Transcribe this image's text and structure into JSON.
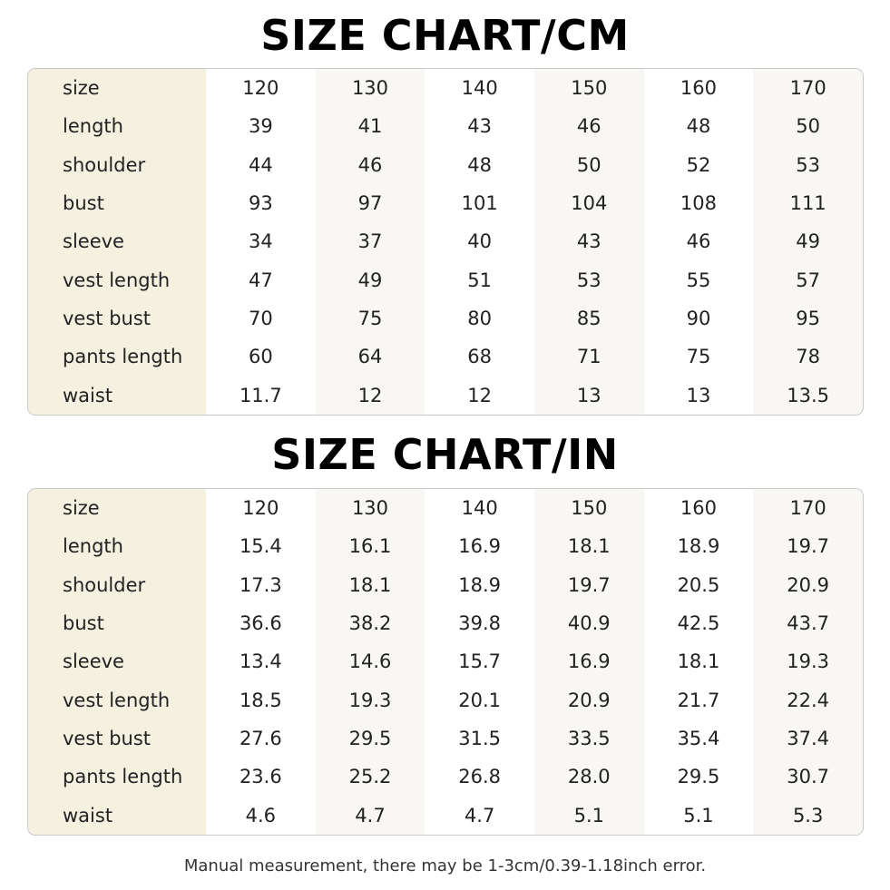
{
  "cm_chart": {
    "title": "SIZE CHART/CM",
    "rows": [
      {
        "label": "size",
        "values": [
          "120",
          "130",
          "140",
          "150",
          "160",
          "170"
        ]
      },
      {
        "label": "length",
        "values": [
          "39",
          "41",
          "43",
          "46",
          "48",
          "50"
        ]
      },
      {
        "label": "shoulder",
        "values": [
          "44",
          "46",
          "48",
          "50",
          "52",
          "53"
        ]
      },
      {
        "label": "bust",
        "values": [
          "93",
          "97",
          "101",
          "104",
          "108",
          "111"
        ]
      },
      {
        "label": "sleeve",
        "values": [
          "34",
          "37",
          "40",
          "43",
          "46",
          "49"
        ]
      },
      {
        "label": "vest length",
        "values": [
          "47",
          "49",
          "51",
          "53",
          "55",
          "57"
        ]
      },
      {
        "label": "vest bust",
        "values": [
          "70",
          "75",
          "80",
          "85",
          "90",
          "95"
        ]
      },
      {
        "label": "pants length",
        "values": [
          "60",
          "64",
          "68",
          "71",
          "75",
          "78"
        ]
      },
      {
        "label": "waist",
        "values": [
          "11.7",
          "12",
          "12",
          "13",
          "13",
          "13.5"
        ]
      }
    ]
  },
  "in_chart": {
    "title": "SIZE CHART/IN",
    "rows": [
      {
        "label": "size",
        "values": [
          "120",
          "130",
          "140",
          "150",
          "160",
          "170"
        ]
      },
      {
        "label": "length",
        "values": [
          "15.4",
          "16.1",
          "16.9",
          "18.1",
          "18.9",
          "19.7"
        ]
      },
      {
        "label": "shoulder",
        "values": [
          "17.3",
          "18.1",
          "18.9",
          "19.7",
          "20.5",
          "20.9"
        ]
      },
      {
        "label": "bust",
        "values": [
          "36.6",
          "38.2",
          "39.8",
          "40.9",
          "42.5",
          "43.7"
        ]
      },
      {
        "label": "sleeve",
        "values": [
          "13.4",
          "14.6",
          "15.7",
          "16.9",
          "18.1",
          "19.3"
        ]
      },
      {
        "label": "vest length",
        "values": [
          "18.5",
          "19.3",
          "20.1",
          "20.9",
          "21.7",
          "22.4"
        ]
      },
      {
        "label": "vest bust",
        "values": [
          "27.6",
          "29.5",
          "31.5",
          "33.5",
          "35.4",
          "37.4"
        ]
      },
      {
        "label": "pants length",
        "values": [
          "23.6",
          "25.2",
          "26.8",
          "28.0",
          "29.5",
          "30.7"
        ]
      },
      {
        "label": "waist",
        "values": [
          "4.6",
          "4.7",
          "4.7",
          "5.1",
          "5.1",
          "5.3"
        ]
      }
    ]
  },
  "footnote": "Manual measurement, there may be 1-3cm/0.39-1.18inch error.",
  "colors": {
    "label_column": "#f5f1e1",
    "alt_column": "#f8f7f3",
    "border": "#c9c9c9"
  }
}
